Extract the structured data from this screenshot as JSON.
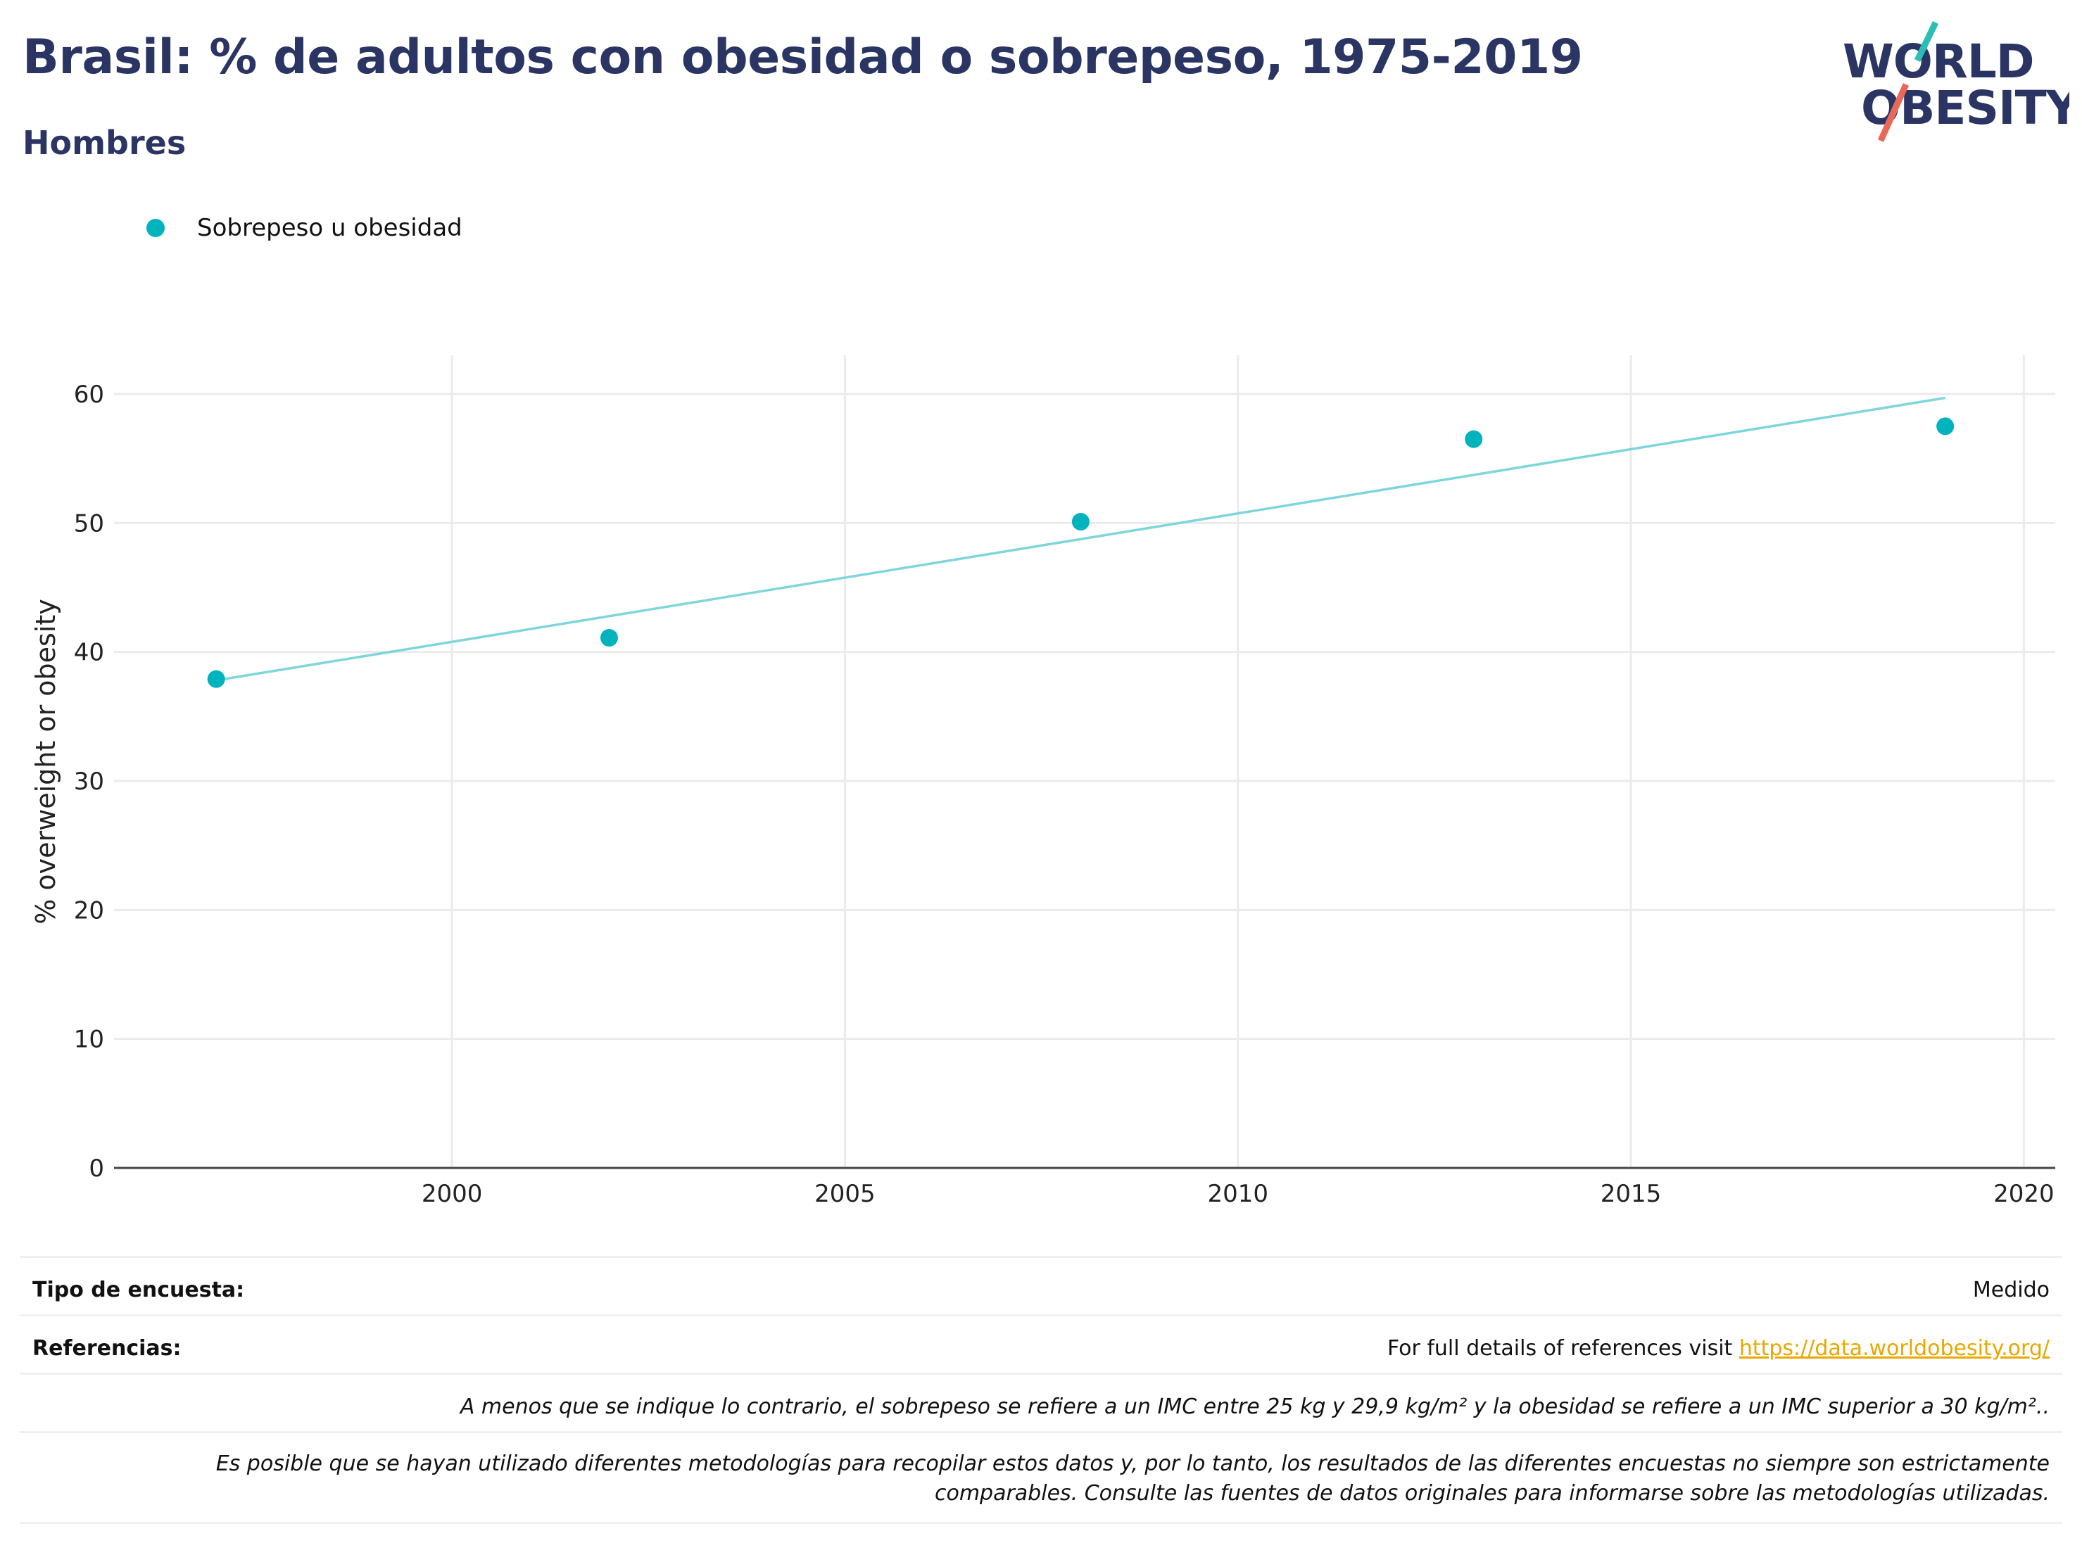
{
  "header": {
    "title": "Brasil: % de adultos con obesidad o sobrepeso, 1975-2019",
    "subtitle": "Hombres"
  },
  "logo": {
    "line1": "WORLD",
    "line2": "OBESITY",
    "colors": {
      "navy": "#2a3563",
      "teal": "#2ebdb6",
      "coral": "#e8695a"
    }
  },
  "legend": {
    "label": "Sobrepeso u obesidad",
    "color": "#00b3bd"
  },
  "chart_data": {
    "type": "scatter",
    "title": "Brasil: % de adultos con obesidad o sobrepeso, 1975-2019",
    "subtitle": "Hombres",
    "xlabel": "",
    "ylabel": "% overweight or obesity",
    "xlim": [
      1995.7,
      2020.4
    ],
    "ylim": [
      0,
      63
    ],
    "xticks": [
      2000,
      2005,
      2010,
      2015,
      2020
    ],
    "yticks": [
      0,
      10,
      20,
      30,
      40,
      50,
      60
    ],
    "grid": true,
    "legend_position": "top-left",
    "series": [
      {
        "name": "Sobrepeso u obesidad",
        "color": "#00b3bd",
        "x": [
          1997,
          2002,
          2008,
          2013,
          2019
        ],
        "y": [
          37.9,
          41.1,
          50.1,
          56.5,
          57.5
        ]
      }
    ],
    "trendline": {
      "color": "#7fd6da",
      "x": [
        1997,
        2019
      ],
      "y": [
        37.8,
        59.7
      ]
    }
  },
  "footer": {
    "survey_label": "Tipo de encuesta:",
    "survey_value": "Medido",
    "refs_label": "Referencias:",
    "refs_text": "For full details of references visit ",
    "refs_link": "https://data.worldobesity.org/",
    "note1": "A menos que se indique lo contrario, el sobrepeso se refiere a un IMC entre 25 kg y 29,9 kg/m² y la obesidad se refiere a un IMC superior a 30 kg/m²..",
    "note2_line1": "Es posible que se hayan utilizado diferentes metodologías para recopilar estos datos y, por lo tanto, los resultados de las diferentes encuestas no siempre son estrictamente",
    "note2_line2": "comparables. Consulte las fuentes de datos originales para informarse sobre las metodologías utilizadas."
  }
}
